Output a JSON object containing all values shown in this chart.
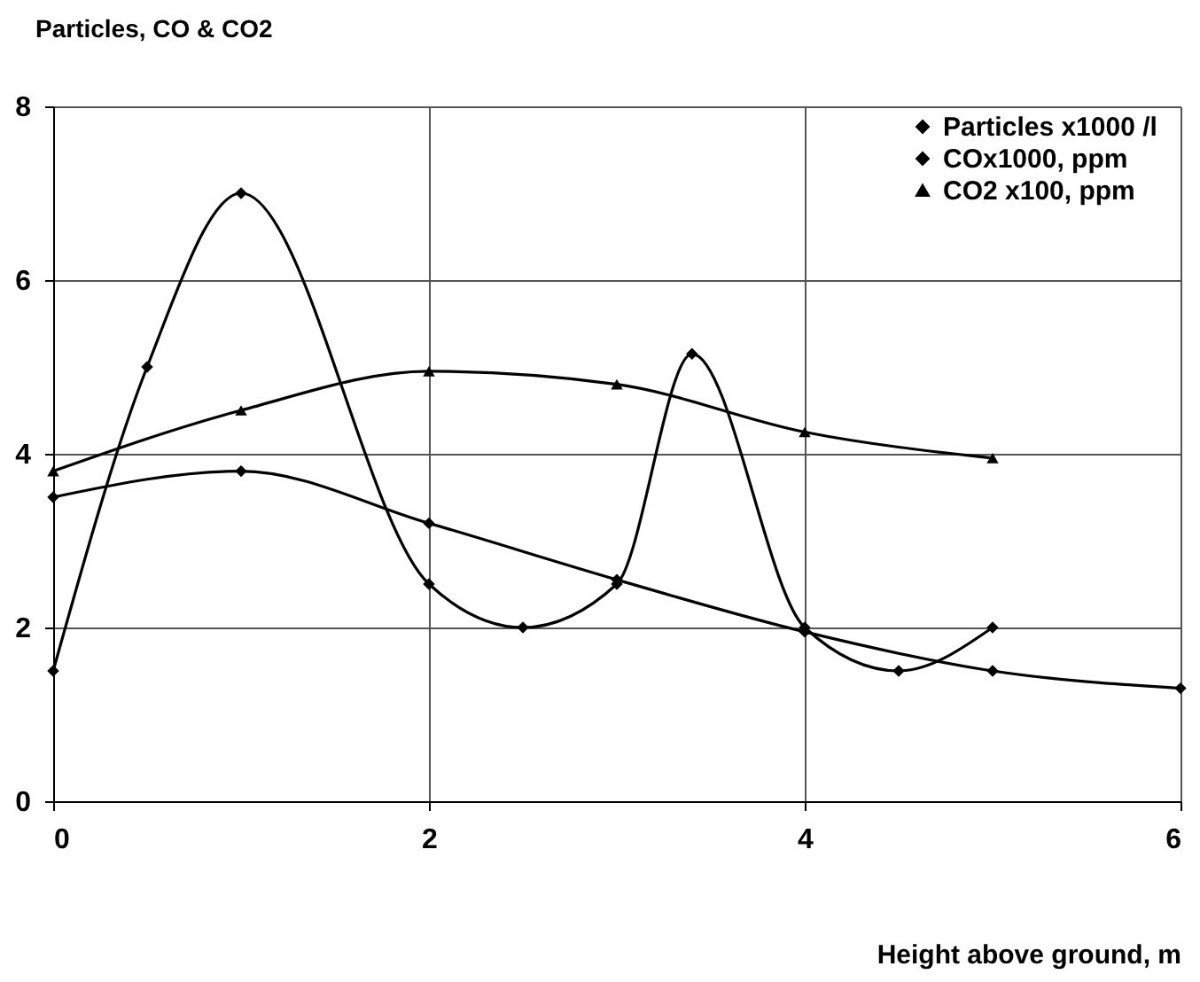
{
  "chart_data": {
    "type": "line",
    "title": "Particles, CO & CO2",
    "xlabel": "Height above ground, m",
    "xlim": [
      0,
      6
    ],
    "xticks": [
      {
        "value": 0,
        "label": "0"
      },
      {
        "value": 2,
        "label": "2"
      },
      {
        "value": 4,
        "label": "4"
      },
      {
        "value": 6,
        "label": "6"
      }
    ],
    "ylim": [
      0,
      8
    ],
    "yticks": [
      0,
      2,
      4,
      6,
      8
    ],
    "grid": true,
    "legend": "top right",
    "marker": "diamond",
    "series": [
      {
        "name": "Particles x1000   /l",
        "color": "#000000",
        "x": [
          0,
          0.5,
          1,
          2,
          2.5,
          3,
          3.4,
          4,
          4.5,
          5
        ],
        "values": [
          1.5,
          5,
          7,
          2.5,
          2,
          2.5,
          5.15,
          2,
          1.5,
          2
        ]
      },
      {
        "name": "COx1000, ppm",
        "color": "#000000",
        "x": [
          0,
          1,
          2,
          3,
          4,
          5,
          6
        ],
        "values": [
          3.5,
          3.8,
          3.2,
          2.55,
          1.95,
          1.5,
          1.3
        ]
      },
      {
        "name": "CO2 x100, ppm",
        "color": "#000000",
        "marker": "triangle",
        "x": [
          0,
          1,
          2,
          3,
          4,
          5
        ],
        "values": [
          3.8,
          4.5,
          4.95,
          4.8,
          4.25,
          3.95
        ]
      }
    ]
  }
}
